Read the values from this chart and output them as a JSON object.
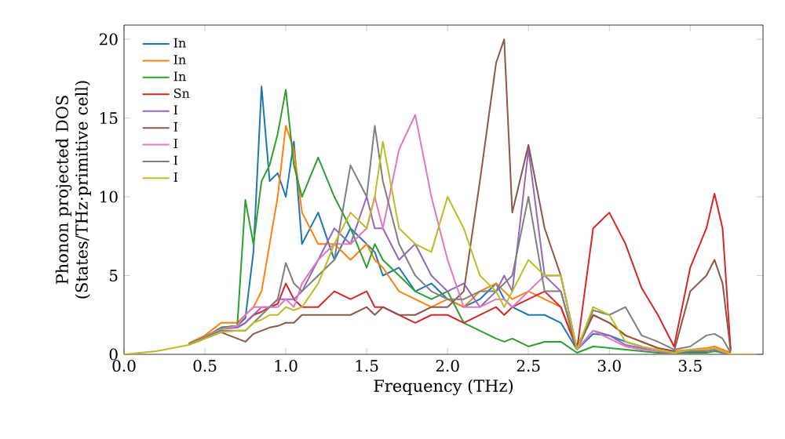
{
  "chart_data": {
    "type": "line",
    "xlabel": "Frequency (THz)",
    "ylabel": "Phonon projected DOS (States/THz·primitive cell)",
    "xlim": [
      0,
      3.95
    ],
    "ylim": [
      0,
      20.9
    ],
    "xticks": [
      {
        "value": 0,
        "label": "0.0"
      },
      {
        "value": 0.5,
        "label": "0.5"
      },
      {
        "value": 1,
        "label": "1.0"
      },
      {
        "value": 1.5,
        "label": "1.5"
      },
      {
        "value": 2,
        "label": "2.0"
      },
      {
        "value": 2.5,
        "label": "2.5"
      },
      {
        "value": 3,
        "label": "3.0"
      },
      {
        "value": 3.5,
        "label": "3.5"
      }
    ],
    "yticks": [
      0,
      5,
      10,
      15,
      20
    ],
    "legend": "top left",
    "marker": "none",
    "line_style": "solid",
    "x": [
      0,
      0.1,
      0.2,
      0.3,
      0.4,
      0.5,
      0.6,
      0.7,
      0.75,
      0.8,
      0.85,
      0.9,
      0.95,
      1.0,
      1.05,
      1.1,
      1.2,
      1.3,
      1.4,
      1.5,
      1.55,
      1.6,
      1.7,
      1.8,
      1.9,
      2.0,
      2.1,
      2.2,
      2.3,
      2.35,
      2.4,
      2.5,
      2.6,
      2.7,
      2.8,
      2.9,
      3.0,
      3.1,
      3.2,
      3.3,
      3.4,
      3.5,
      3.6,
      3.65,
      3.7,
      3.75,
      3.8,
      3.9
    ],
    "series": [
      {
        "name": "In",
        "color": "#1f77b4",
        "values": [
          null,
          null,
          null,
          null,
          null,
          null,
          1.7,
          1.8,
          2.3,
          6.5,
          17,
          11,
          11.5,
          10,
          13.5,
          7,
          9,
          6,
          8,
          7,
          6.5,
          5,
          5.5,
          4,
          4.5,
          3.5,
          3,
          3.5,
          4.5,
          3.5,
          3,
          2.5,
          2.5,
          2,
          0.3,
          1.3,
          1.2,
          0.8,
          0.5,
          null,
          null,
          null,
          null,
          null,
          null,
          null,
          null,
          null
        ]
      },
      {
        "name": "In",
        "color": "#ff7f0e",
        "values": [
          null,
          null,
          null,
          null,
          0.7,
          1.2,
          2,
          2,
          2.5,
          3,
          4,
          7,
          10,
          14.5,
          13,
          9,
          7,
          7,
          6,
          7,
          6,
          5.5,
          4,
          3.5,
          3,
          3.5,
          3,
          4,
          4.5,
          4,
          3.5,
          4,
          3.5,
          3,
          0.5,
          2.5,
          2,
          1.2,
          0.8,
          0.4,
          0.2,
          0.3,
          0.4,
          0.5,
          0.3,
          0.1,
          null,
          null
        ]
      },
      {
        "name": "In",
        "color": "#2ca02c",
        "values": [
          null,
          null,
          null,
          null,
          0.65,
          1.1,
          1.7,
          1.8,
          9.8,
          7,
          11,
          12,
          14,
          16.8,
          12,
          10,
          12.5,
          10,
          8,
          5.5,
          7,
          6,
          5,
          4,
          3.5,
          4,
          2,
          1.5,
          1,
          0.8,
          1,
          0.5,
          0.8,
          0.8,
          0.1,
          0.5,
          0.4,
          0.3,
          0.2,
          0.1,
          0.1,
          0.1,
          0.1,
          0.2,
          0.1,
          0,
          null,
          null
        ]
      },
      {
        "name": "Sn",
        "color": "#d62728",
        "values": [
          null,
          null,
          null,
          null,
          null,
          null,
          null,
          1.7,
          2,
          2.5,
          2.7,
          3,
          3.2,
          4.5,
          3.5,
          3,
          3,
          4,
          3.5,
          4,
          3,
          3,
          2.5,
          2,
          2.5,
          2.5,
          2,
          2.5,
          3,
          2.5,
          3,
          3.5,
          4,
          3,
          0.3,
          8,
          9,
          7,
          4.2,
          2.5,
          0.5,
          5.5,
          8,
          10.2,
          8,
          0.3,
          null,
          null
        ]
      },
      {
        "name": "I",
        "color": "#9467bd",
        "values": [
          null,
          null,
          null,
          null,
          0.65,
          1.1,
          1.6,
          1.7,
          2,
          2.5,
          3,
          3,
          3.5,
          3.5,
          3.5,
          4,
          6,
          8,
          7,
          10,
          8,
          8,
          6,
          7,
          5,
          4,
          4.5,
          3,
          4,
          5,
          4,
          13,
          5,
          4,
          0.3,
          1.5,
          1.2,
          0.6,
          0.4,
          0.2,
          0.1,
          0.2,
          0.2,
          0.3,
          0.1,
          0,
          null,
          null
        ]
      },
      {
        "name": "I",
        "color": "#8c564b",
        "values": [
          null,
          null,
          null,
          null,
          0.6,
          1.0,
          1.4,
          1.0,
          0.8,
          1.3,
          1.5,
          1.7,
          1.8,
          2,
          2,
          2.5,
          2.5,
          2.5,
          2.5,
          3,
          2.5,
          3,
          2.5,
          2.5,
          3,
          3,
          4,
          11,
          18.5,
          20,
          9,
          13.3,
          8,
          5,
          0.3,
          2.5,
          2,
          1.2,
          0.8,
          0.4,
          0.2,
          4,
          5,
          6,
          4.5,
          0.2,
          null,
          null
        ]
      },
      {
        "name": "I",
        "color": "#e377c2",
        "values": [
          null,
          null,
          null,
          null,
          0.65,
          1.1,
          1.6,
          1.8,
          2.5,
          3,
          3,
          3,
          3,
          3.5,
          3,
          4.5,
          6,
          7,
          7,
          8,
          10,
          8,
          13,
          15.2,
          10,
          6,
          3,
          3,
          3.5,
          3.5,
          3,
          4,
          5,
          5,
          0.3,
          1.5,
          1,
          0.5,
          0.3,
          0.2,
          0.1,
          0.3,
          null,
          null,
          null,
          null,
          null,
          null
        ]
      },
      {
        "name": "I",
        "color": "#7f7f7f",
        "values": [
          null,
          null,
          null,
          null,
          0.65,
          1.1,
          1.5,
          1.5,
          1.5,
          2,
          2.5,
          3,
          3.5,
          5.8,
          4.5,
          4,
          5,
          6,
          12,
          10,
          14.5,
          11,
          7,
          5,
          4,
          3.5,
          3.5,
          4,
          4,
          4.5,
          5,
          10,
          4,
          4,
          0.3,
          2.8,
          2.5,
          3,
          1.2,
          0.8,
          0.3,
          0.5,
          1.2,
          1.3,
          1,
          0.1,
          null,
          null
        ]
      },
      {
        "name": "I",
        "color": "#bcbd22",
        "values": [
          0,
          0.1,
          0.2,
          0.4,
          0.6,
          1.0,
          1.4,
          1.5,
          1.5,
          2,
          2.2,
          2.5,
          2.5,
          3,
          2.8,
          3,
          4.5,
          7,
          9,
          8,
          10,
          13.5,
          8,
          7,
          6.5,
          10,
          8,
          5,
          4,
          3,
          4,
          6,
          5,
          5,
          0.3,
          3,
          2.5,
          0.8,
          0.5,
          0.3,
          0.1,
          0.3,
          0.3,
          0.4,
          0.2,
          0,
          0,
          0
        ]
      }
    ]
  }
}
